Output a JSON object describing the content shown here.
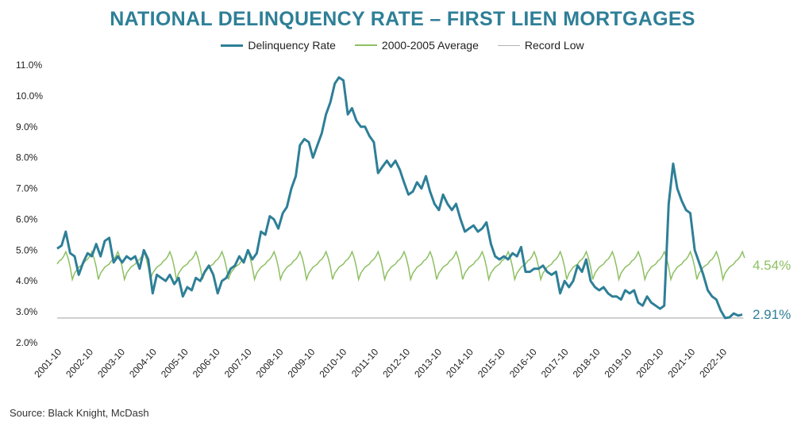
{
  "chart_data": {
    "type": "line",
    "title": "NATIONAL DELINQUENCY RATE – FIRST LIEN MORTGAGES",
    "source": "Source: Black Knight, McDash",
    "ylim": [
      2.0,
      11.0
    ],
    "y_ticks": [
      "2.0%",
      "3.0%",
      "4.0%",
      "5.0%",
      "6.0%",
      "7.0%",
      "8.0%",
      "9.0%",
      "10.0%",
      "11.0%"
    ],
    "x_ticks": [
      "2001-10",
      "2002-10",
      "2003-10",
      "2004-10",
      "2005-10",
      "2006-10",
      "2007-10",
      "2008-10",
      "2009-10",
      "2010-10",
      "2011-10",
      "2012-10",
      "2013-10",
      "2014-10",
      "2015-10",
      "2016-10",
      "2017-10",
      "2018-10",
      "2019-10",
      "2020-10",
      "2021-10",
      "2022-10"
    ],
    "grid": false,
    "legend_position": "top",
    "series": [
      {
        "name": "Delinquency Rate",
        "color": "#2e7f97",
        "end_label": "2.91%",
        "points": [
          [
            2001.75,
            5.05
          ],
          [
            2001.92,
            5.15
          ],
          [
            2002.08,
            5.6
          ],
          [
            2002.25,
            4.9
          ],
          [
            2002.42,
            4.8
          ],
          [
            2002.58,
            4.2
          ],
          [
            2002.75,
            4.6
          ],
          [
            2002.92,
            4.9
          ],
          [
            2003.08,
            4.8
          ],
          [
            2003.25,
            5.2
          ],
          [
            2003.42,
            4.8
          ],
          [
            2003.58,
            5.3
          ],
          [
            2003.75,
            5.4
          ],
          [
            2003.92,
            4.6
          ],
          [
            2004.08,
            4.8
          ],
          [
            2004.25,
            4.6
          ],
          [
            2004.42,
            4.8
          ],
          [
            2004.58,
            4.7
          ],
          [
            2004.75,
            4.8
          ],
          [
            2004.92,
            4.4
          ],
          [
            2005.08,
            5.0
          ],
          [
            2005.25,
            4.7
          ],
          [
            2005.42,
            3.6
          ],
          [
            2005.58,
            4.2
          ],
          [
            2005.75,
            4.1
          ],
          [
            2005.92,
            4.0
          ],
          [
            2006.08,
            4.2
          ],
          [
            2006.25,
            3.9
          ],
          [
            2006.42,
            4.1
          ],
          [
            2006.58,
            3.5
          ],
          [
            2006.75,
            3.8
          ],
          [
            2006.92,
            3.7
          ],
          [
            2007.08,
            4.1
          ],
          [
            2007.25,
            4.0
          ],
          [
            2007.42,
            4.3
          ],
          [
            2007.58,
            4.5
          ],
          [
            2007.75,
            4.2
          ],
          [
            2007.92,
            3.6
          ],
          [
            2008.08,
            4.0
          ],
          [
            2008.25,
            4.1
          ],
          [
            2008.42,
            4.4
          ],
          [
            2008.58,
            4.5
          ],
          [
            2008.75,
            4.8
          ],
          [
            2008.92,
            4.6
          ],
          [
            2009.08,
            5.0
          ],
          [
            2009.25,
            4.7
          ],
          [
            2009.42,
            4.9
          ],
          [
            2009.58,
            5.6
          ],
          [
            2009.75,
            5.5
          ],
          [
            2009.92,
            6.1
          ],
          [
            2010.08,
            6.0
          ],
          [
            2010.25,
            5.7
          ],
          [
            2010.42,
            6.2
          ],
          [
            2010.58,
            6.4
          ],
          [
            2010.75,
            7.0
          ],
          [
            2010.92,
            7.4
          ],
          [
            2011.08,
            8.4
          ],
          [
            2011.25,
            8.6
          ],
          [
            2011.42,
            8.5
          ],
          [
            2011.58,
            8.0
          ],
          [
            2011.75,
            8.4
          ],
          [
            2011.92,
            8.8
          ],
          [
            2012.08,
            9.4
          ],
          [
            2012.25,
            9.8
          ],
          [
            2012.42,
            10.4
          ],
          [
            2012.58,
            10.6
          ],
          [
            2012.75,
            10.5
          ],
          [
            2012.92,
            9.4
          ],
          [
            2013.08,
            9.6
          ],
          [
            2013.25,
            9.2
          ],
          [
            2013.42,
            9.0
          ],
          [
            2013.58,
            9.0
          ],
          [
            2013.75,
            8.7
          ],
          [
            2013.92,
            8.5
          ],
          [
            2014.08,
            7.5
          ],
          [
            2014.25,
            7.7
          ],
          [
            2014.42,
            7.9
          ],
          [
            2014.58,
            7.7
          ],
          [
            2014.75,
            7.9
          ],
          [
            2014.92,
            7.6
          ],
          [
            2015.08,
            7.2
          ],
          [
            2015.25,
            6.8
          ],
          [
            2015.42,
            6.9
          ],
          [
            2015.58,
            7.2
          ],
          [
            2015.75,
            7.0
          ],
          [
            2015.92,
            7.4
          ],
          [
            2016.08,
            6.9
          ],
          [
            2016.25,
            6.5
          ],
          [
            2016.42,
            6.3
          ],
          [
            2016.58,
            6.8
          ],
          [
            2016.75,
            6.5
          ],
          [
            2016.92,
            6.3
          ],
          [
            2017.08,
            6.5
          ],
          [
            2017.25,
            6.0
          ],
          [
            2017.42,
            5.6
          ],
          [
            2017.58,
            5.7
          ],
          [
            2017.75,
            5.8
          ],
          [
            2017.92,
            5.6
          ],
          [
            2018.08,
            5.7
          ],
          [
            2018.25,
            5.9
          ],
          [
            2018.42,
            5.2
          ],
          [
            2018.58,
            4.8
          ],
          [
            2018.75,
            4.7
          ],
          [
            2018.92,
            4.8
          ],
          [
            2019.08,
            4.7
          ],
          [
            2019.25,
            4.9
          ],
          [
            2019.42,
            4.8
          ],
          [
            2019.58,
            5.1
          ],
          [
            2019.75,
            4.3
          ],
          [
            2019.92,
            4.3
          ],
          [
            2020.08,
            4.4
          ],
          [
            2020.25,
            4.4
          ],
          [
            2020.42,
            4.5
          ],
          [
            2020.58,
            4.3
          ],
          [
            2020.75,
            4.2
          ],
          [
            2020.92,
            4.3
          ],
          [
            2021.08,
            3.6
          ],
          [
            2021.25,
            4.0
          ],
          [
            2021.42,
            3.8
          ],
          [
            2021.58,
            4.0
          ],
          [
            2021.75,
            4.5
          ],
          [
            2021.92,
            4.3
          ],
          [
            2022.08,
            4.7
          ],
          [
            2022.25,
            4.0
          ],
          [
            2022.42,
            3.8
          ],
          [
            2022.58,
            3.7
          ],
          [
            2022.75,
            3.8
          ],
          [
            2022.92,
            3.6
          ],
          [
            2023.08,
            3.5
          ],
          [
            2023.25,
            3.5
          ],
          [
            2023.42,
            3.4
          ],
          [
            2023.58,
            3.7
          ],
          [
            2023.75,
            3.6
          ],
          [
            2023.92,
            3.7
          ],
          [
            2024.08,
            3.3
          ],
          [
            2024.25,
            3.2
          ],
          [
            2024.42,
            3.5
          ],
          [
            2024.58,
            3.3
          ],
          [
            2024.75,
            3.2
          ],
          [
            2024.92,
            3.1
          ],
          [
            2025.08,
            3.2
          ],
          [
            2025.25,
            6.5
          ],
          [
            2025.42,
            7.8
          ],
          [
            2025.58,
            7.0
          ],
          [
            2025.75,
            6.6
          ],
          [
            2025.92,
            6.3
          ],
          [
            2026.08,
            6.2
          ],
          [
            2026.25,
            5.0
          ],
          [
            2026.42,
            4.6
          ],
          [
            2026.58,
            4.2
          ],
          [
            2026.75,
            3.7
          ],
          [
            2026.92,
            3.5
          ],
          [
            2027.08,
            3.4
          ],
          [
            2027.25,
            3.05
          ],
          [
            2027.42,
            2.8
          ],
          [
            2027.58,
            2.82
          ],
          [
            2027.75,
            2.95
          ],
          [
            2027.92,
            2.88
          ],
          [
            2028.08,
            2.91
          ]
        ]
      },
      {
        "name": "2000-2005 Average",
        "color": "#8dc063",
        "end_label": "4.54%",
        "seasonal_cycle": [
          4.55,
          4.65,
          4.7,
          4.8,
          4.95,
          4.75,
          4.45,
          4.05,
          4.25,
          4.35,
          4.45,
          4.5
        ],
        "start": 2001.75,
        "end": 2028.17
      },
      {
        "name": "Record Low",
        "color": "#b4b4b4",
        "value": 2.8
      }
    ]
  }
}
